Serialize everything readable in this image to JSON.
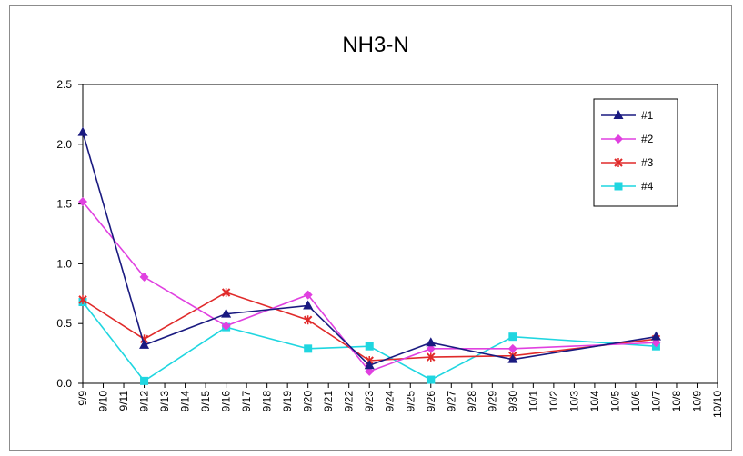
{
  "chart_data": {
    "type": "line",
    "title": "NH3-N",
    "xlabel": "",
    "ylabel": "",
    "ylim": [
      0,
      2.5
    ],
    "yticks": [
      "0.0",
      "0.5",
      "1.0",
      "1.5",
      "2.0",
      "2.5"
    ],
    "categories": [
      "9/9",
      "9/10",
      "9/11",
      "9/12",
      "9/13",
      "9/14",
      "9/15",
      "9/16",
      "9/17",
      "9/18",
      "9/19",
      "9/20",
      "9/21",
      "9/22",
      "9/23",
      "9/24",
      "9/25",
      "9/26",
      "9/27",
      "9/28",
      "9/29",
      "9/30",
      "10/1",
      "10/2",
      "10/3",
      "10/4",
      "10/5",
      "10/6",
      "10/7",
      "10/8",
      "10/9",
      "10/10"
    ],
    "legend_position": "top-right",
    "grid": false,
    "series": [
      {
        "name": "#1",
        "color": "#1a1a80",
        "marker": "triangle",
        "points": [
          [
            "9/9",
            2.1
          ],
          [
            "9/12",
            0.32
          ],
          [
            "9/16",
            0.58
          ],
          [
            "9/20",
            0.65
          ],
          [
            "9/23",
            0.15
          ],
          [
            "9/26",
            0.34
          ],
          [
            "9/30",
            0.2
          ],
          [
            "10/7",
            0.39
          ]
        ]
      },
      {
        "name": "#2",
        "color": "#e040e0",
        "marker": "diamond",
        "points": [
          [
            "9/9",
            1.52
          ],
          [
            "9/12",
            0.89
          ],
          [
            "9/16",
            0.48
          ],
          [
            "9/20",
            0.74
          ],
          [
            "9/23",
            0.1
          ],
          [
            "9/26",
            0.29
          ],
          [
            "9/30",
            0.29
          ],
          [
            "10/7",
            0.34
          ]
        ]
      },
      {
        "name": "#3",
        "color": "#e02a2a",
        "marker": "star",
        "points": [
          [
            "9/9",
            0.7
          ],
          [
            "9/12",
            0.37
          ],
          [
            "9/16",
            0.76
          ],
          [
            "9/20",
            0.53
          ],
          [
            "9/23",
            0.19
          ],
          [
            "9/26",
            0.22
          ],
          [
            "9/30",
            0.23
          ],
          [
            "10/7",
            0.37
          ]
        ]
      },
      {
        "name": "#4",
        "color": "#1fd6e0",
        "marker": "square",
        "points": [
          [
            "9/9",
            0.68
          ],
          [
            "9/12",
            0.02
          ],
          [
            "9/16",
            0.47
          ],
          [
            "9/20",
            0.29
          ],
          [
            "9/23",
            0.31
          ],
          [
            "9/26",
            0.03
          ],
          [
            "9/30",
            0.39
          ],
          [
            "10/7",
            0.31
          ]
        ]
      }
    ]
  }
}
